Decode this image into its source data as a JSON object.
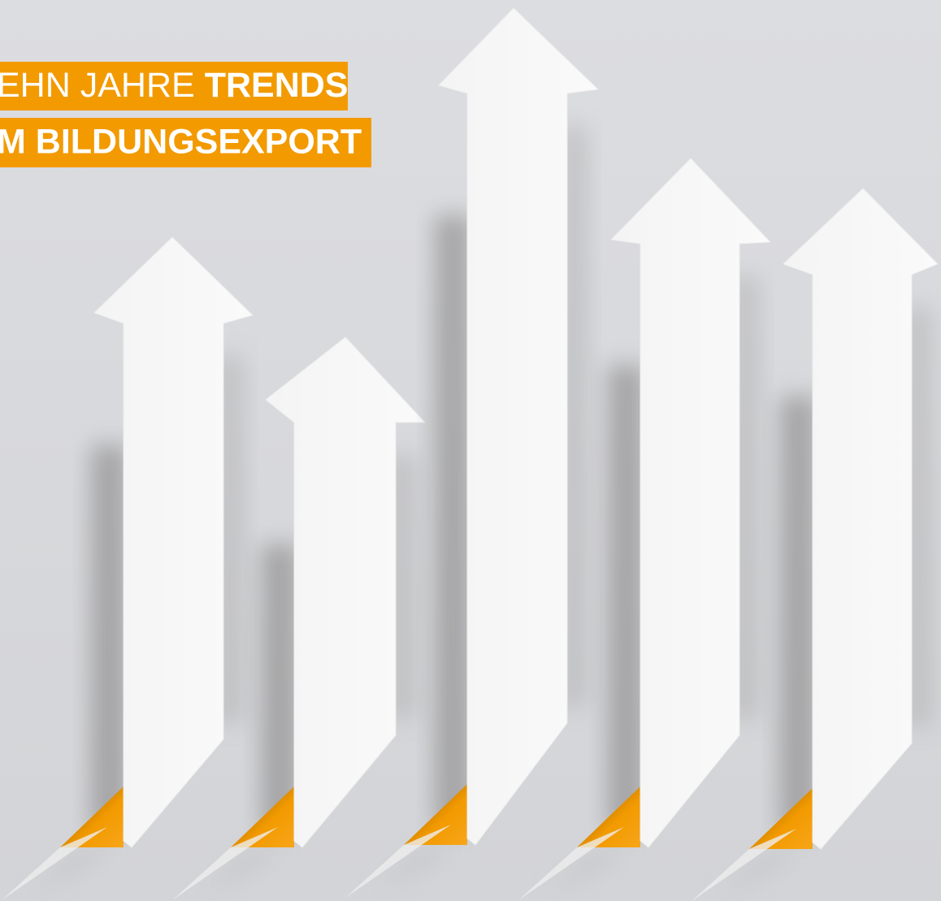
{
  "title": {
    "line1": {
      "regular": "EHN JAHRE",
      "bold": "TRENDS"
    },
    "line2": "M BILDUNGSEXPORT"
  }
}
